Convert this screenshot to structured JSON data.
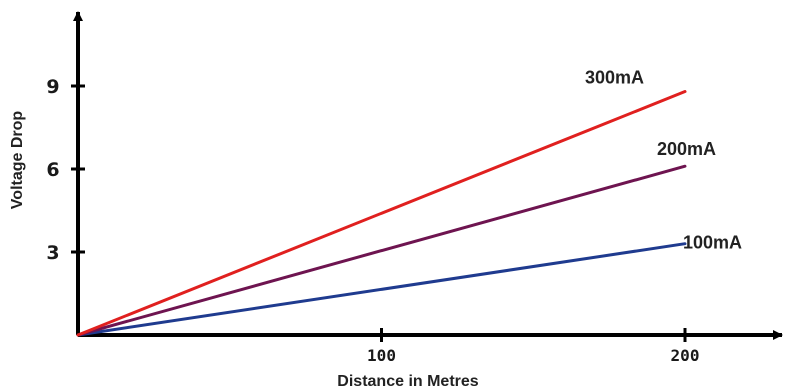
{
  "chart_data": {
    "type": "line",
    "title": "",
    "xlabel": "Distance in Metres",
    "ylabel": "Voltage Drop",
    "xlim": [
      0,
      200
    ],
    "ylim": [
      0,
      9
    ],
    "x_ticks": [
      100,
      200
    ],
    "x_tick_labels": [
      "100",
      "200"
    ],
    "y_ticks": [
      3,
      6,
      9
    ],
    "y_tick_labels": [
      "3",
      "6",
      "9"
    ],
    "grid": false,
    "legend": "none",
    "series": [
      {
        "name": "100mA",
        "color": "#1f3b8f",
        "x": [
          0,
          200
        ],
        "y": [
          0,
          3.3
        ]
      },
      {
        "name": "200mA",
        "color": "#6e1450",
        "x": [
          0,
          200
        ],
        "y": [
          0,
          6.1
        ]
      },
      {
        "name": "300mA",
        "color": "#e0201f",
        "x": [
          0,
          200
        ],
        "y": [
          0,
          8.8
        ]
      }
    ]
  }
}
